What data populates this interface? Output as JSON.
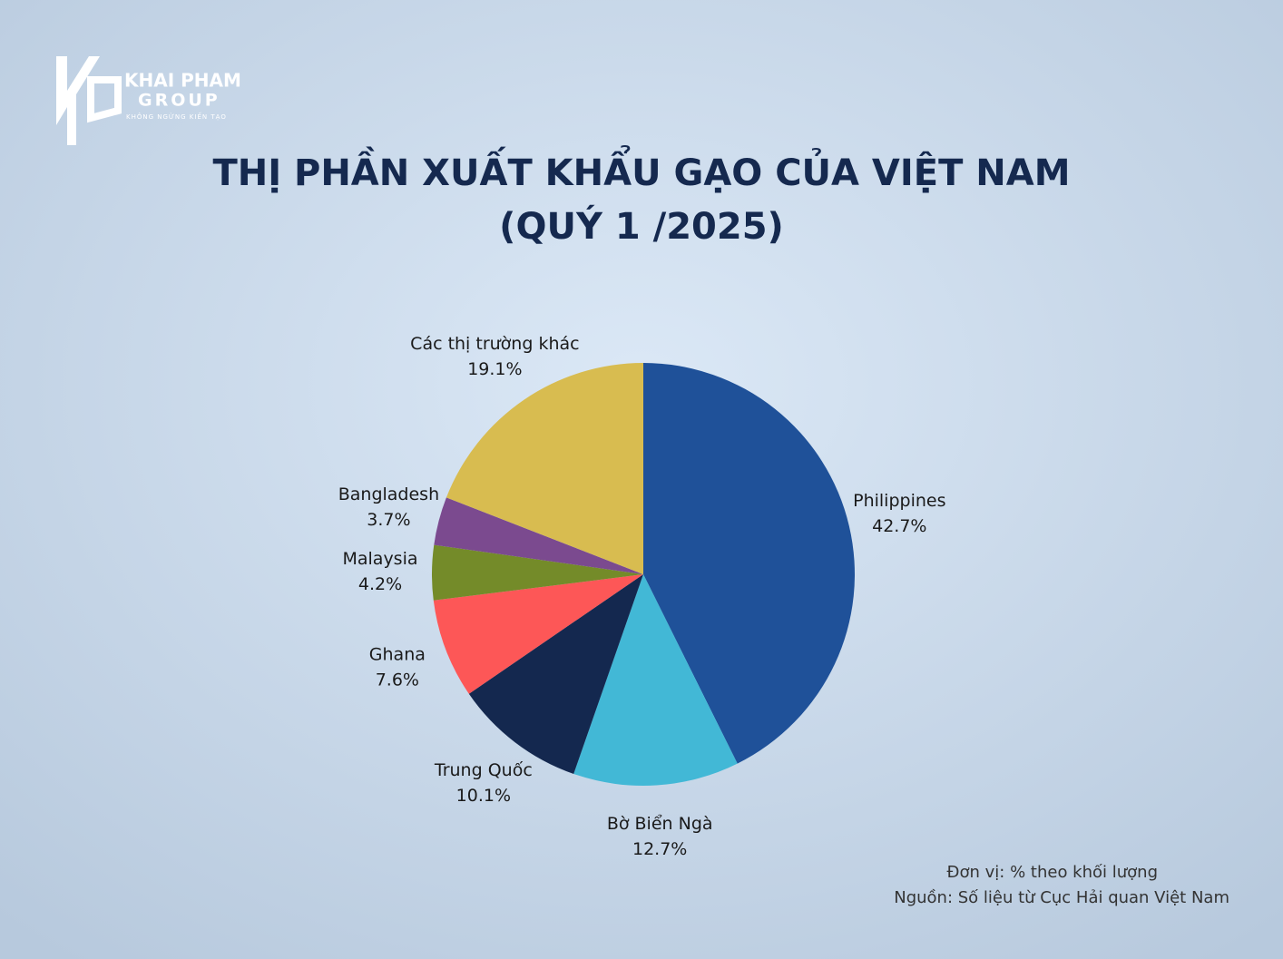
{
  "logo": {
    "name": "KHAI PHAM",
    "group": "GROUP",
    "slogan": "KHÔNG NGỪNG KIẾN TẠO"
  },
  "chart_data": {
    "type": "pie",
    "title": "THỊ PHẦN XUẤT KHẨU GẠO CỦA VIỆT NAM",
    "subtitle": "(QUÝ 1 /2025)",
    "categories": [
      "Philippines",
      "Bờ Biển Ngà",
      "Trung Quốc",
      "Ghana",
      "Malaysia",
      "Bangladesh",
      "Các thị trường khác"
    ],
    "values": [
      42.7,
      12.7,
      10.1,
      7.6,
      4.2,
      3.7,
      19.1
    ],
    "value_labels": [
      "42.7%",
      "12.7%",
      "10.1%",
      "7.6%",
      "4.2%",
      "3.7%",
      "19.1%"
    ],
    "colors": [
      "#1f5199",
      "#42b8d6",
      "#14284f",
      "#fd5757",
      "#748b29",
      "#7b4a8f",
      "#d8bc50"
    ],
    "notes": [
      "Đơn vị: % theo khối lượng",
      "Nguồn: Số liệu từ Cục Hải quan Việt Nam"
    ]
  }
}
